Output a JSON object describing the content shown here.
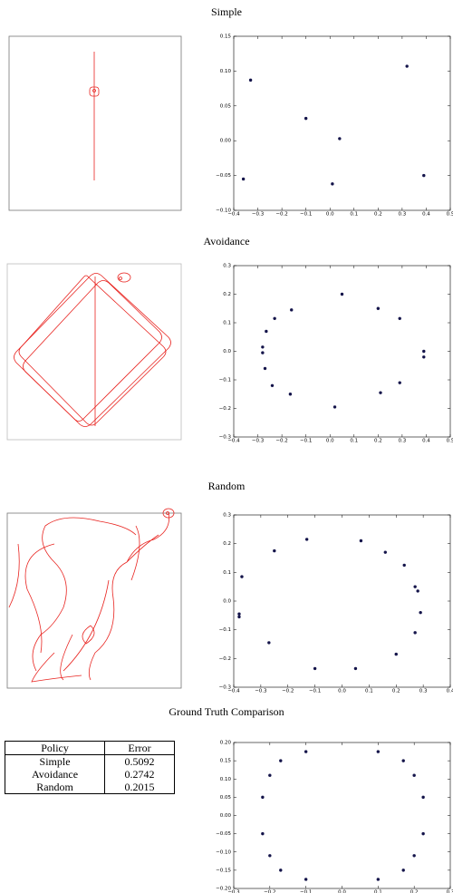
{
  "chart_data": [
    {
      "type": "scatter",
      "title": "Simple",
      "color": "#14144a",
      "x": [
        -0.33,
        -0.1,
        0.04,
        0.32,
        0.01,
        -0.36,
        0.39
      ],
      "values": [
        0.087,
        0.032,
        0.003,
        0.107,
        -0.062,
        -0.055,
        -0.05
      ],
      "xlim": [
        -0.4,
        0.5
      ],
      "xticks": [
        {
          "value": -0.4,
          "label": "−0.4"
        },
        {
          "value": -0.3,
          "label": "−0.3"
        },
        {
          "value": -0.2,
          "label": "−0.2"
        },
        {
          "value": -0.1,
          "label": "−0.1"
        },
        {
          "value": 0,
          "label": "0.0"
        },
        0.1,
        0.2,
        0.3,
        0.4,
        0.5
      ],
      "ylim": [
        -0.1,
        0.15
      ],
      "yticks": [
        {
          "value": -0.1,
          "label": "−0.10"
        },
        {
          "value": -0.05,
          "label": "−0.05"
        },
        {
          "value": 0,
          "label": "0.00"
        },
        0.05,
        {
          "value": 0.1,
          "label": "0.10"
        },
        0.15
      ]
    },
    {
      "type": "scatter",
      "title": "Avoidance",
      "color": "#14144a",
      "x": [
        0.05,
        -0.16,
        0.2,
        -0.23,
        0.29,
        -0.265,
        -0.28,
        -0.28,
        0.39,
        0.39,
        -0.27,
        -0.24,
        0.29,
        -0.165,
        0.21,
        0.02
      ],
      "values": [
        0.2,
        0.145,
        0.15,
        0.115,
        0.115,
        0.07,
        0.015,
        -0.005,
        0,
        -0.02,
        -0.06,
        -0.12,
        -0.11,
        -0.15,
        -0.145,
        -0.195
      ],
      "xlim": [
        -0.4,
        0.5
      ],
      "xticks": [
        {
          "value": -0.4,
          "label": "−0.4"
        },
        {
          "value": -0.3,
          "label": "−0.3"
        },
        {
          "value": -0.2,
          "label": "−0.2"
        },
        {
          "value": -0.1,
          "label": "−0.1"
        },
        {
          "value": 0,
          "label": "0.0"
        },
        0.1,
        0.2,
        0.3,
        0.4,
        0.5
      ],
      "ylim": [
        -0.3,
        0.3
      ],
      "yticks": [
        {
          "value": -0.3,
          "label": "−0.3"
        },
        {
          "value": -0.2,
          "label": "−0.2"
        },
        {
          "value": -0.1,
          "label": "−0.1"
        },
        {
          "value": 0,
          "label": "0.0"
        },
        0.1,
        0.2,
        0.3
      ]
    },
    {
      "type": "scatter",
      "title": "Random",
      "color": "#14144a",
      "x": [
        -0.13,
        0.07,
        -0.25,
        0.16,
        0.23,
        -0.37,
        0.27,
        0.28,
        0.29,
        -0.38,
        -0.38,
        0.27,
        -0.27,
        0.2,
        -0.1,
        0.05
      ],
      "values": [
        0.215,
        0.21,
        0.175,
        0.17,
        0.125,
        0.085,
        0.05,
        0.035,
        -0.04,
        -0.045,
        -0.055,
        -0.11,
        -0.145,
        -0.185,
        -0.235,
        -0.235
      ],
      "xlim": [
        -0.4,
        0.4
      ],
      "xticks": [
        {
          "value": -0.4,
          "label": "−0.4"
        },
        {
          "value": -0.3,
          "label": "−0.3"
        },
        {
          "value": -0.2,
          "label": "−0.2"
        },
        {
          "value": -0.1,
          "label": "−0.1"
        },
        {
          "value": 0,
          "label": "0.0"
        },
        0.1,
        0.2,
        0.3,
        0.4
      ],
      "ylim": [
        -0.3,
        0.3
      ],
      "yticks": [
        {
          "value": -0.3,
          "label": "−0.3"
        },
        {
          "value": -0.2,
          "label": "−0.2"
        },
        {
          "value": -0.1,
          "label": "−0.1"
        },
        {
          "value": 0,
          "label": "0.0"
        },
        0.1,
        0.2,
        0.3
      ]
    },
    {
      "type": "scatter",
      "title": "Ground Truth Comparison",
      "color": "#14144a",
      "x": [
        -0.1,
        0.1,
        -0.17,
        0.17,
        -0.2,
        0.2,
        -0.22,
        0.225,
        -0.22,
        0.225,
        -0.2,
        0.2,
        -0.17,
        0.17,
        -0.1,
        0.1
      ],
      "values": [
        0.175,
        0.175,
        0.15,
        0.15,
        0.11,
        0.11,
        0.05,
        0.05,
        -0.05,
        -0.05,
        -0.11,
        -0.11,
        -0.15,
        -0.15,
        -0.175,
        -0.175
      ],
      "xlim": [
        -0.3,
        0.3
      ],
      "xticks": [
        {
          "value": -0.3,
          "label": "−0.3"
        },
        {
          "value": -0.2,
          "label": "−0.2"
        },
        {
          "value": -0.1,
          "label": "−0.1"
        },
        {
          "value": 0,
          "label": "0.0"
        },
        0.1,
        0.2,
        0.3
      ],
      "ylim": [
        -0.2,
        0.2
      ],
      "yticks": [
        {
          "value": -0.2,
          "label": "−0.20"
        },
        {
          "value": -0.15,
          "label": "−0.15"
        },
        {
          "value": -0.1,
          "label": "−0.10"
        },
        {
          "value": -0.05,
          "label": "−0.05"
        },
        {
          "value": 0,
          "label": "0.00"
        },
        0.05,
        {
          "value": 0.1,
          "label": "0.10"
        },
        0.15,
        {
          "value": 0.2,
          "label": "0.20"
        }
      ]
    }
  ],
  "table": {
    "header": [
      "Policy",
      "Error"
    ],
    "rows": [
      [
        "Simple",
        "0.5092"
      ],
      [
        "Avoidance",
        "0.2742"
      ],
      [
        "Random",
        "0.2015"
      ]
    ]
  }
}
